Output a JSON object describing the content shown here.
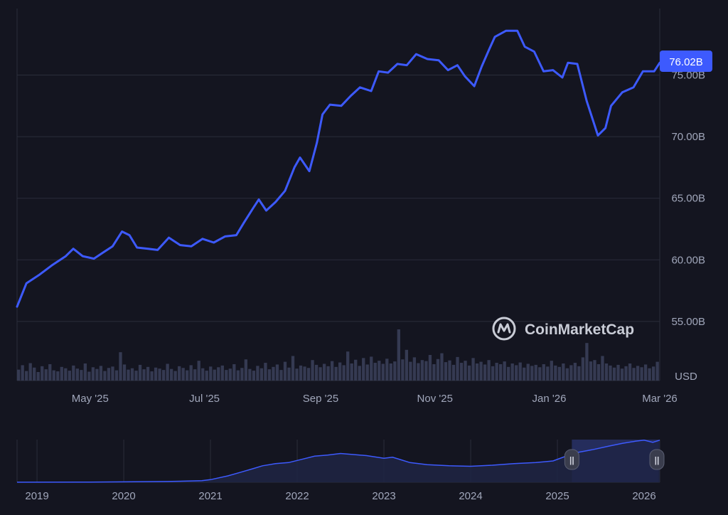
{
  "chart_data": [
    {
      "type": "line",
      "title": "",
      "xlabel": "",
      "ylabel": "",
      "currency_label": "USD",
      "current_value_label": "76.02B",
      "y_unit": "B",
      "ylim": [
        50.2,
        80.4
      ],
      "y_ticks": [
        55,
        60,
        65,
        70,
        75
      ],
      "y_tick_labels": [
        "55.00B",
        "60.00B",
        "65.00B",
        "70.00B",
        "75.00B"
      ],
      "x_tick_labels": [
        "May '25",
        "Jul '25",
        "Sep '25",
        "Nov '25",
        "Jan '26",
        "Mar '26"
      ],
      "x_tick_dates": [
        "2025-05-01",
        "2025-07-01",
        "2025-09-01",
        "2025-11-01",
        "2026-01-01",
        "2026-03-01"
      ],
      "xlim": [
        "2025-03-23",
        "2026-03-01"
      ],
      "grid": true,
      "series": [
        {
          "points": [
            [
              "2025-03-23",
              56.2
            ],
            [
              "2025-03-28",
              58.1
            ],
            [
              "2025-04-04",
              58.8
            ],
            [
              "2025-04-11",
              59.6
            ],
            [
              "2025-04-18",
              60.3
            ],
            [
              "2025-04-22",
              60.9
            ],
            [
              "2025-04-27",
              60.3
            ],
            [
              "2025-05-03",
              60.1
            ],
            [
              "2025-05-08",
              60.6
            ],
            [
              "2025-05-13",
              61.1
            ],
            [
              "2025-05-18",
              62.3
            ],
            [
              "2025-05-22",
              62.0
            ],
            [
              "2025-05-26",
              61.0
            ],
            [
              "2025-06-01",
              60.9
            ],
            [
              "2025-06-06",
              60.8
            ],
            [
              "2025-06-12",
              61.8
            ],
            [
              "2025-06-18",
              61.2
            ],
            [
              "2025-06-24",
              61.1
            ],
            [
              "2025-06-30",
              61.7
            ],
            [
              "2025-07-06",
              61.4
            ],
            [
              "2025-07-12",
              61.9
            ],
            [
              "2025-07-18",
              62.0
            ],
            [
              "2025-07-22",
              63.0
            ],
            [
              "2025-07-27",
              64.2
            ],
            [
              "2025-07-30",
              64.9
            ],
            [
              "2025-08-03",
              64.0
            ],
            [
              "2025-08-08",
              64.7
            ],
            [
              "2025-08-13",
              65.6
            ],
            [
              "2025-08-18",
              67.5
            ],
            [
              "2025-08-21",
              68.3
            ],
            [
              "2025-08-26",
              67.2
            ],
            [
              "2025-08-30",
              69.5
            ],
            [
              "2025-09-02",
              71.8
            ],
            [
              "2025-09-06",
              72.6
            ],
            [
              "2025-09-12",
              72.5
            ],
            [
              "2025-09-17",
              73.3
            ],
            [
              "2025-09-22",
              74.0
            ],
            [
              "2025-09-28",
              73.7
            ],
            [
              "2025-10-02",
              75.3
            ],
            [
              "2025-10-07",
              75.2
            ],
            [
              "2025-10-12",
              75.9
            ],
            [
              "2025-10-17",
              75.8
            ],
            [
              "2025-10-22",
              76.7
            ],
            [
              "2025-10-28",
              76.3
            ],
            [
              "2025-11-03",
              76.2
            ],
            [
              "2025-11-08",
              75.4
            ],
            [
              "2025-11-13",
              75.8
            ],
            [
              "2025-11-17",
              74.9
            ],
            [
              "2025-11-22",
              74.1
            ],
            [
              "2025-11-26",
              75.7
            ],
            [
              "2025-11-30",
              77.1
            ],
            [
              "2025-12-03",
              78.1
            ],
            [
              "2025-12-09",
              78.6
            ],
            [
              "2025-12-15",
              78.6
            ],
            [
              "2025-12-19",
              77.3
            ],
            [
              "2025-12-24",
              76.9
            ],
            [
              "2025-12-29",
              75.3
            ],
            [
              "2026-01-03",
              75.4
            ],
            [
              "2026-01-08",
              74.8
            ],
            [
              "2026-01-11",
              76.0
            ],
            [
              "2026-01-16",
              75.9
            ],
            [
              "2026-01-21",
              72.9
            ],
            [
              "2026-01-27",
              70.1
            ],
            [
              "2026-01-31",
              70.7
            ],
            [
              "2026-02-03",
              72.5
            ],
            [
              "2026-02-09",
              73.6
            ],
            [
              "2026-02-15",
              74.0
            ],
            [
              "2026-02-20",
              75.3
            ],
            [
              "2026-02-26",
              75.3
            ],
            [
              "2026-03-01",
              76.0
            ]
          ]
        }
      ],
      "volume": [
        0.32,
        0.45,
        0.28,
        0.51,
        0.38,
        0.25,
        0.42,
        0.33,
        0.48,
        0.3,
        0.27,
        0.4,
        0.36,
        0.29,
        0.44,
        0.35,
        0.31,
        0.5,
        0.26,
        0.39,
        0.34,
        0.43,
        0.28,
        0.37,
        0.41,
        0.3,
        0.83,
        0.47,
        0.32,
        0.36,
        0.29,
        0.46,
        0.33,
        0.4,
        0.27,
        0.38,
        0.35,
        0.31,
        0.49,
        0.34,
        0.28,
        0.42,
        0.37,
        0.3,
        0.45,
        0.33,
        0.58,
        0.36,
        0.29,
        0.41,
        0.32,
        0.39,
        0.44,
        0.31,
        0.35,
        0.48,
        0.3,
        0.37,
        0.62,
        0.34,
        0.29,
        0.43,
        0.36,
        0.52,
        0.33,
        0.4,
        0.47,
        0.31,
        0.55,
        0.38,
        0.72,
        0.35,
        0.44,
        0.41,
        0.37,
        0.6,
        0.46,
        0.39,
        0.49,
        0.42,
        0.57,
        0.4,
        0.53,
        0.45,
        0.85,
        0.5,
        0.61,
        0.43,
        0.66,
        0.47,
        0.7,
        0.52,
        0.58,
        0.49,
        0.64,
        0.5,
        0.56,
        1.5,
        0.62,
        0.9,
        0.55,
        0.68,
        0.51,
        0.6,
        0.57,
        0.75,
        0.48,
        0.63,
        0.8,
        0.54,
        0.59,
        0.46,
        0.69,
        0.52,
        0.58,
        0.44,
        0.66,
        0.5,
        0.55,
        0.47,
        0.6,
        0.42,
        0.52,
        0.48,
        0.56,
        0.4,
        0.5,
        0.45,
        0.53,
        0.38,
        0.49,
        0.43,
        0.46,
        0.39,
        0.48,
        0.41,
        0.58,
        0.44,
        0.4,
        0.5,
        0.36,
        0.45,
        0.52,
        0.42,
        0.68,
        1.1,
        0.56,
        0.6,
        0.48,
        0.72,
        0.5,
        0.44,
        0.38,
        0.46,
        0.35,
        0.42,
        0.5,
        0.37,
        0.43,
        0.39,
        0.47,
        0.36,
        0.41,
        0.55
      ]
    },
    {
      "type": "area",
      "x_tick_labels": [
        "2019",
        "2020",
        "2021",
        "2022",
        "2023",
        "2024",
        "2025",
        "2026"
      ],
      "x_tick_years": [
        2019,
        2020,
        2021,
        2022,
        2023,
        2024,
        2025,
        2026
      ],
      "xlim": [
        2018.77,
        2026.18
      ],
      "ylim": [
        0,
        80
      ],
      "selected_range": [
        "2025-03",
        "2026-03"
      ],
      "series": [
        {
          "x": [
            2018.77,
            2019.5,
            2020.0,
            2020.5,
            2020.9,
            2021.0,
            2021.2,
            2021.35,
            2021.5,
            2021.6,
            2021.75,
            2021.9,
            2022.05,
            2022.2,
            2022.35,
            2022.5,
            2022.65,
            2022.8,
            2023.0,
            2023.1,
            2023.2,
            2023.3,
            2023.5,
            2023.75,
            2024.0,
            2024.25,
            2024.5,
            2024.75,
            2024.95,
            2025.05,
            2025.2,
            2025.4,
            2025.6,
            2025.75,
            2025.9,
            2026.0,
            2026.1,
            2026.18
          ],
          "y": [
            0.1,
            0.3,
            0.8,
            1.5,
            3.0,
            5.0,
            12.0,
            19.0,
            26.0,
            31.0,
            35.0,
            37.0,
            43.0,
            49.0,
            51.0,
            54.0,
            52.0,
            50.0,
            45.0,
            47.0,
            42.0,
            37.0,
            33.0,
            31.0,
            30.0,
            32.0,
            35.0,
            37.0,
            40.0,
            46.0,
            55.0,
            61.0,
            68.0,
            73.0,
            77.0,
            79.0,
            75.0,
            79.0
          ]
        }
      ]
    }
  ],
  "watermark": {
    "text": "CoinMarketCap"
  },
  "handles": {
    "left_glyph": "||",
    "right_glyph": "||"
  },
  "colors": {
    "background": "#141520",
    "line": "#3d5afe",
    "grid": "#2a2d3a",
    "axis_text": "#a1a7bb",
    "badge": "#3d5afe",
    "badge_text": "#ffffff",
    "volume": "#353a52",
    "nav_fill": "#1f2544",
    "nav_selected": "#252d5c"
  }
}
